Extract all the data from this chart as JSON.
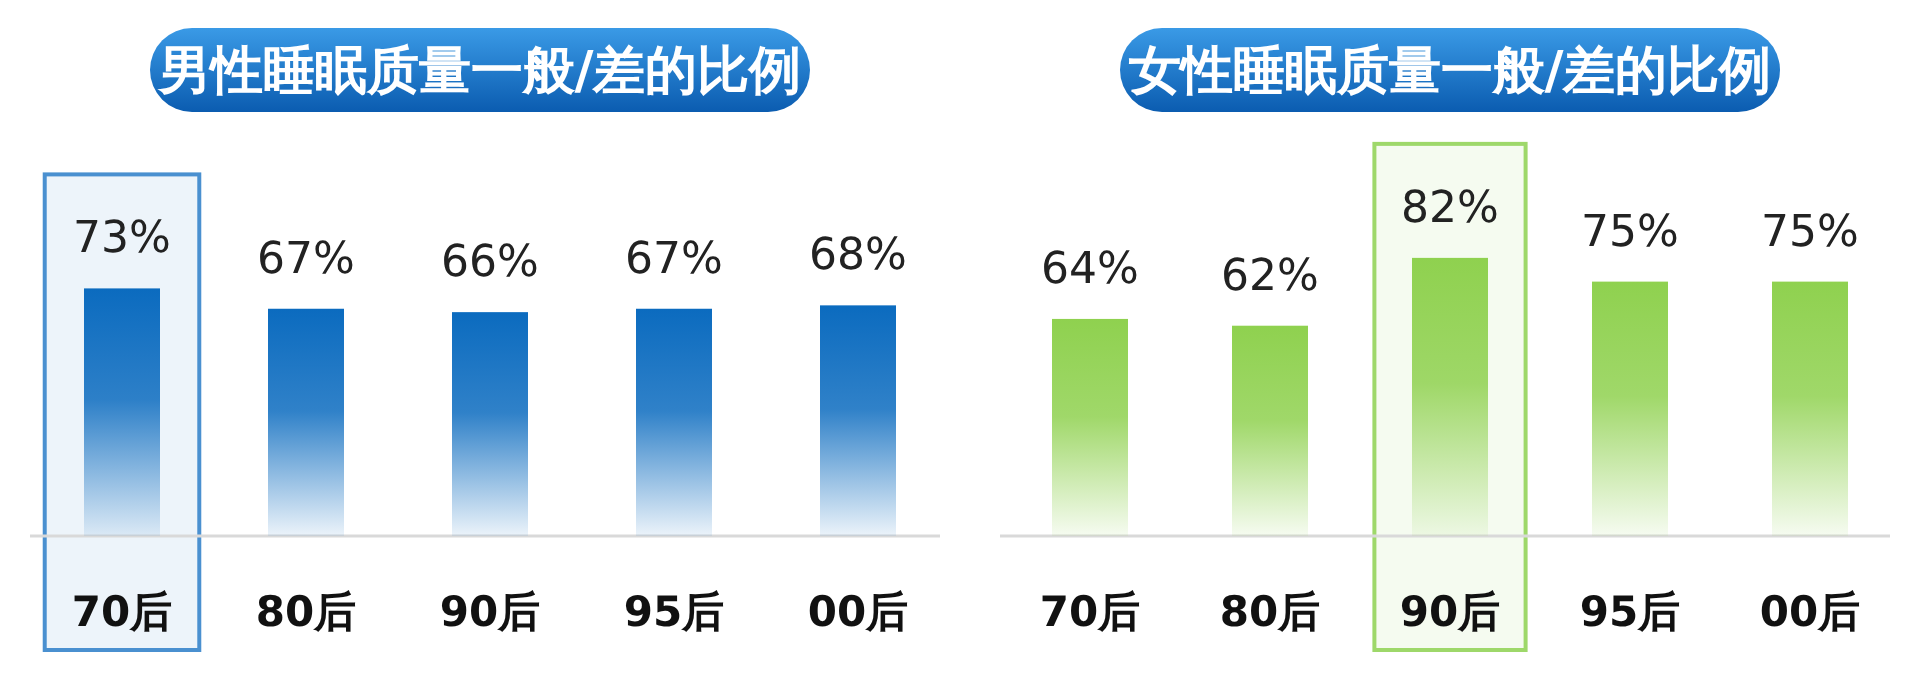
{
  "chart_data": [
    {
      "type": "bar",
      "title": "男性睡眠质量一般/差的比例",
      "categories": [
        "70后",
        "80后",
        "90后",
        "95后",
        "00后"
      ],
      "series": [
        {
          "color": "#0b6bbf",
          "values": [
            73,
            67,
            66,
            67,
            68
          ],
          "value_labels": [
            "73%",
            "67%",
            "66%",
            "67%",
            "68%"
          ]
        }
      ],
      "bands": [
        {
          "axis": "x",
          "from": "70后",
          "to": "70后",
          "color": "#4a90d0"
        }
      ]
    },
    {
      "type": "bar",
      "title": "女性睡眠质量一般/差的比例",
      "categories": [
        "70后",
        "80后",
        "90后",
        "95后",
        "00后"
      ],
      "series": [
        {
          "color": "#8fd14f",
          "values": [
            64,
            62,
            82,
            75,
            75
          ],
          "value_labels": [
            "64%",
            "62%",
            "82%",
            "75%",
            "75%"
          ]
        }
      ],
      "bands": [
        {
          "axis": "x",
          "from": "90后",
          "to": "90后",
          "color": "#9ed86a"
        }
      ]
    }
  ]
}
